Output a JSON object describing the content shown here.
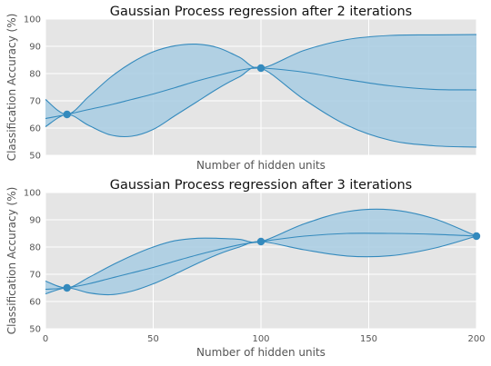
{
  "chart_data": [
    {
      "type": "line",
      "title": "Gaussian Process regression after 2 iterations",
      "xlabel": "Number of hidden units",
      "ylabel": "Classification Accuracy (%)",
      "xlim": [
        0,
        200
      ],
      "ylim": [
        50,
        100
      ],
      "x_ticks": [
        0,
        50,
        100,
        150,
        200
      ],
      "x_tick_labels_shown": false,
      "y_ticks": [
        50,
        60,
        70,
        80,
        90,
        100
      ],
      "grid": true,
      "colors": {
        "background": "#e5e5e5",
        "grid": "#ffffff",
        "line": "#348abd",
        "fill": "#a8cce3"
      },
      "observations": {
        "x": [
          10,
          100
        ],
        "y": [
          65,
          82
        ]
      },
      "series": [
        {
          "role": "mean",
          "x": [
            0,
            10,
            20,
            30,
            40,
            50,
            60,
            70,
            80,
            90,
            100,
            120,
            140,
            160,
            180,
            200
          ],
          "y": [
            63.5,
            65,
            66.8,
            68.5,
            70.5,
            72.5,
            74.8,
            77.2,
            79.3,
            81.2,
            82,
            80.5,
            77.8,
            75.5,
            74.2,
            74
          ]
        },
        {
          "role": "upper",
          "x": [
            0,
            10,
            20,
            30,
            40,
            50,
            60,
            70,
            80,
            90,
            100,
            120,
            140,
            160,
            180,
            200
          ],
          "y": [
            70.5,
            65,
            71.5,
            78.5,
            84,
            88,
            90.2,
            90.8,
            89.5,
            86,
            82,
            88.5,
            92.5,
            94,
            94.2,
            94.3
          ]
        },
        {
          "role": "lower",
          "x": [
            0,
            10,
            20,
            30,
            40,
            50,
            60,
            70,
            80,
            90,
            100,
            120,
            140,
            160,
            180,
            200
          ],
          "y": [
            60.5,
            65,
            61,
            57.5,
            57,
            59.5,
            64.5,
            69.5,
            74.5,
            78.8,
            82,
            70.5,
            61,
            55.5,
            53.5,
            53
          ]
        }
      ]
    },
    {
      "type": "line",
      "title": "Gaussian Process regression after 3 iterations",
      "xlabel": "Number of hidden units",
      "ylabel": "Classification Accuracy (%)",
      "xlim": [
        0,
        200
      ],
      "ylim": [
        50,
        100
      ],
      "x_ticks": [
        0,
        50,
        100,
        150,
        200
      ],
      "x_tick_labels_shown": true,
      "y_ticks": [
        50,
        60,
        70,
        80,
        90,
        100
      ],
      "grid": true,
      "colors": {
        "background": "#e5e5e5",
        "grid": "#ffffff",
        "line": "#348abd",
        "fill": "#a8cce3"
      },
      "observations": {
        "x": [
          10,
          100,
          200
        ],
        "y": [
          65,
          82,
          84
        ]
      },
      "series": [
        {
          "role": "mean",
          "x": [
            0,
            10,
            20,
            30,
            40,
            50,
            60,
            70,
            80,
            90,
            100,
            120,
            140,
            160,
            180,
            200
          ],
          "y": [
            64.5,
            65,
            66.5,
            68.5,
            70.5,
            72.5,
            74.8,
            77,
            79,
            80.8,
            82,
            84,
            85,
            85,
            84.7,
            84
          ]
        },
        {
          "role": "upper",
          "x": [
            0,
            10,
            20,
            30,
            40,
            50,
            60,
            70,
            80,
            90,
            100,
            120,
            140,
            160,
            180,
            200
          ],
          "y": [
            67.5,
            65,
            68.8,
            73,
            76.8,
            80,
            82.3,
            83.2,
            83.2,
            82.8,
            82,
            88.5,
            93,
            93.7,
            90.5,
            84
          ]
        },
        {
          "role": "lower",
          "x": [
            0,
            10,
            20,
            30,
            40,
            50,
            60,
            70,
            80,
            90,
            100,
            120,
            140,
            160,
            180,
            200
          ],
          "y": [
            62.8,
            65,
            63.2,
            62.5,
            63.8,
            66.5,
            70,
            73.8,
            77.3,
            80,
            82,
            79,
            76.7,
            76.8,
            79.5,
            84
          ]
        }
      ]
    }
  ]
}
